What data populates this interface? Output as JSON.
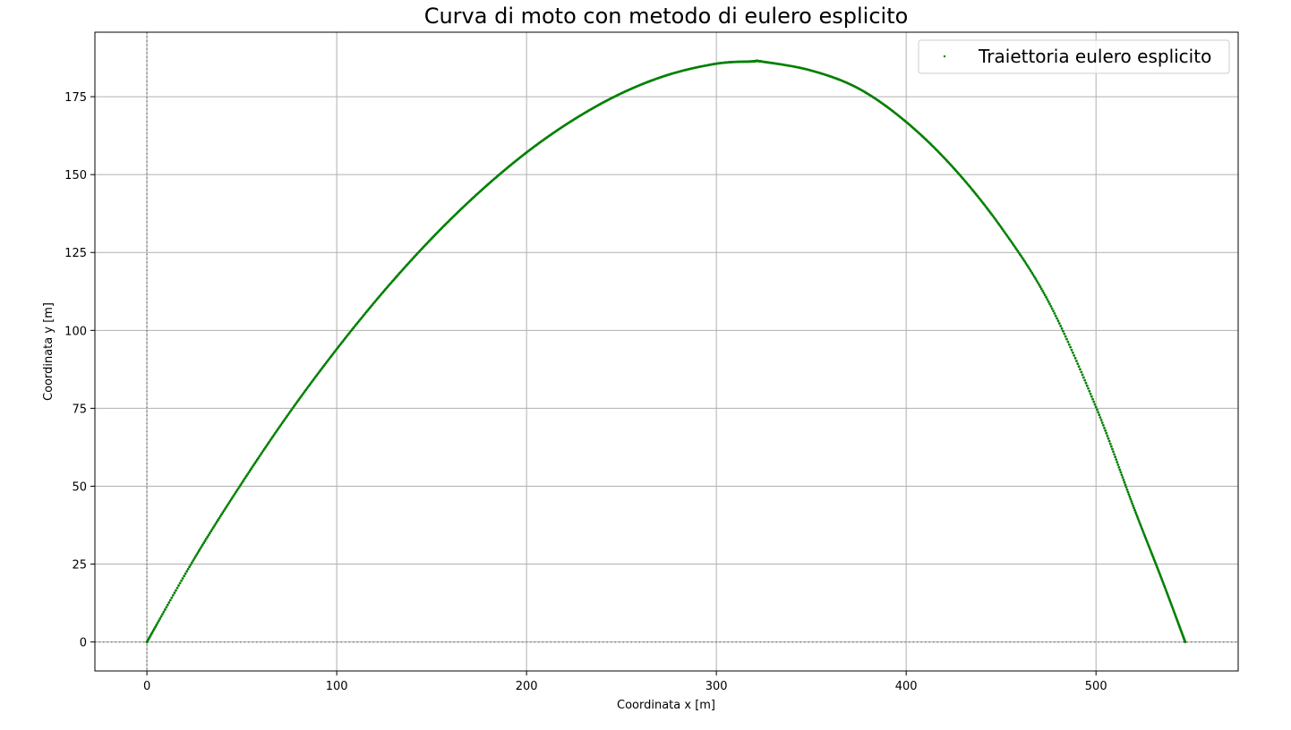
{
  "chart_data": {
    "type": "scatter",
    "title": "Curva di moto con metodo di eulero esplicito",
    "xlabel": "Coordinata x [m]",
    "ylabel": "Coordinata y [m]",
    "xlim": [
      -27.4,
      574.9
    ],
    "ylim": [
      -9.3,
      195.7
    ],
    "xticks": [
      0,
      100,
      200,
      300,
      400,
      500
    ],
    "yticks": [
      0,
      25,
      50,
      75,
      100,
      125,
      150,
      175
    ],
    "grid": true,
    "reference_lines": {
      "x": 0,
      "y": 0,
      "style": "dotted"
    },
    "legend": {
      "position": "top-right"
    },
    "series": [
      {
        "name": "Traiettoria eulero esplicito",
        "color": "#008000",
        "marker": "point",
        "points": [
          [
            0,
            0
          ],
          [
            25,
            26.8
          ],
          [
            50,
            51.0
          ],
          [
            75,
            73.5
          ],
          [
            100,
            94.0
          ],
          [
            125,
            112.7
          ],
          [
            150,
            129.5
          ],
          [
            175,
            144.3
          ],
          [
            200,
            157.1
          ],
          [
            225,
            167.7
          ],
          [
            250,
            176.1
          ],
          [
            275,
            182.1
          ],
          [
            300,
            185.6
          ],
          [
            318,
            186.3
          ],
          [
            325,
            186.2
          ],
          [
            350,
            183.4
          ],
          [
            375,
            177.6
          ],
          [
            400,
            166.9
          ],
          [
            425,
            152.1
          ],
          [
            450,
            133.1
          ],
          [
            475,
            109.2
          ],
          [
            500,
            75.4
          ],
          [
            520,
            43.0
          ],
          [
            535,
            19.6
          ],
          [
            547,
            0
          ]
        ]
      }
    ]
  }
}
